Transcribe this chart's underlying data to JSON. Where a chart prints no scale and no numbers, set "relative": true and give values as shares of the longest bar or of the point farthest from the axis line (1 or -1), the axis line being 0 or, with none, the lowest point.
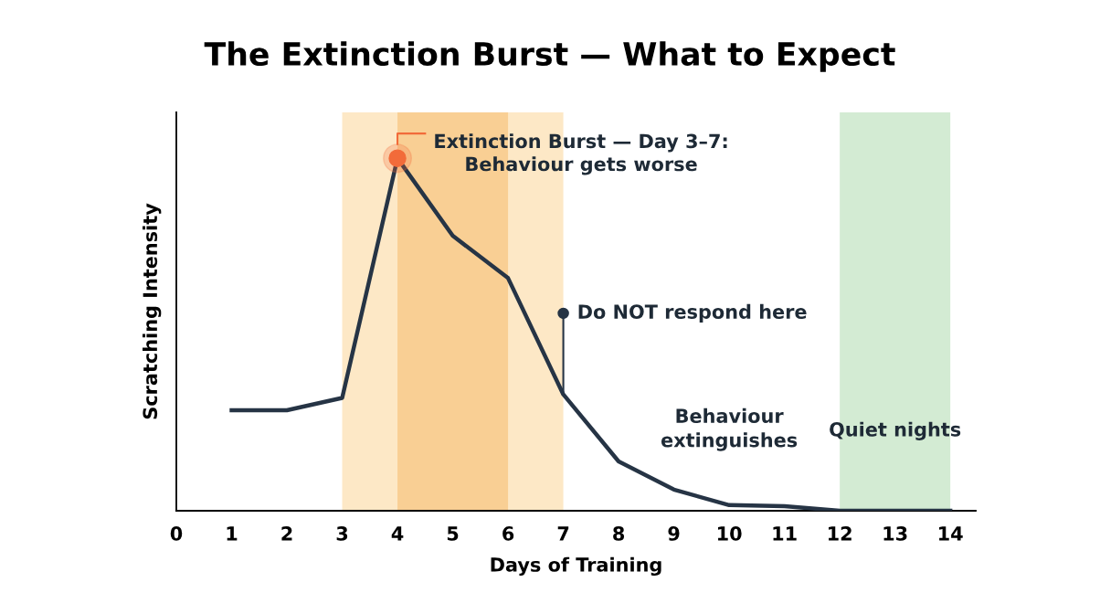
{
  "chart_data": {
    "type": "line",
    "title": "The Extinction Burst — What to Expect",
    "xlabel": "Days of Training",
    "ylabel": "Scratching Intensity",
    "relative": true,
    "x": [
      1,
      2,
      3,
      4,
      5,
      6,
      7,
      8,
      9,
      10,
      11,
      12,
      13,
      14
    ],
    "series": [
      {
        "color": "#263445",
        "values": [
          0.285,
          0.285,
          0.32,
          1,
          0.78,
          0.66,
          0.33,
          0.14,
          0.06,
          0.016,
          0.013,
          0,
          0,
          0
        ]
      }
    ],
    "xlim": [
      0,
      14.46
    ],
    "xticks": [
      0,
      1,
      2,
      3,
      4,
      5,
      6,
      7,
      8,
      9,
      10,
      11,
      12,
      13,
      14
    ],
    "bands": [
      {
        "axis": "x",
        "from": 3,
        "to": 7,
        "color": "#fde8c6"
      },
      {
        "axis": "x",
        "from": 4,
        "to": 6,
        "color": "#f9cf94"
      },
      {
        "axis": "x",
        "from": 12,
        "to": 14,
        "color": "#d3ebd3",
        "label": "Quiet nights"
      }
    ],
    "annotations": [
      {
        "text": "Extinction Burst — Day 3–7:\nBehaviour gets worse",
        "x": 4,
        "y": 1
      },
      {
        "text": "Do NOT respond here",
        "x": 7,
        "y": 0.33
      },
      {
        "text": "Behaviour\nextinguishes",
        "x": 8,
        "y": 0.14
      }
    ],
    "grid": false,
    "legend": false,
    "marker": "none",
    "line_style": "solid"
  }
}
